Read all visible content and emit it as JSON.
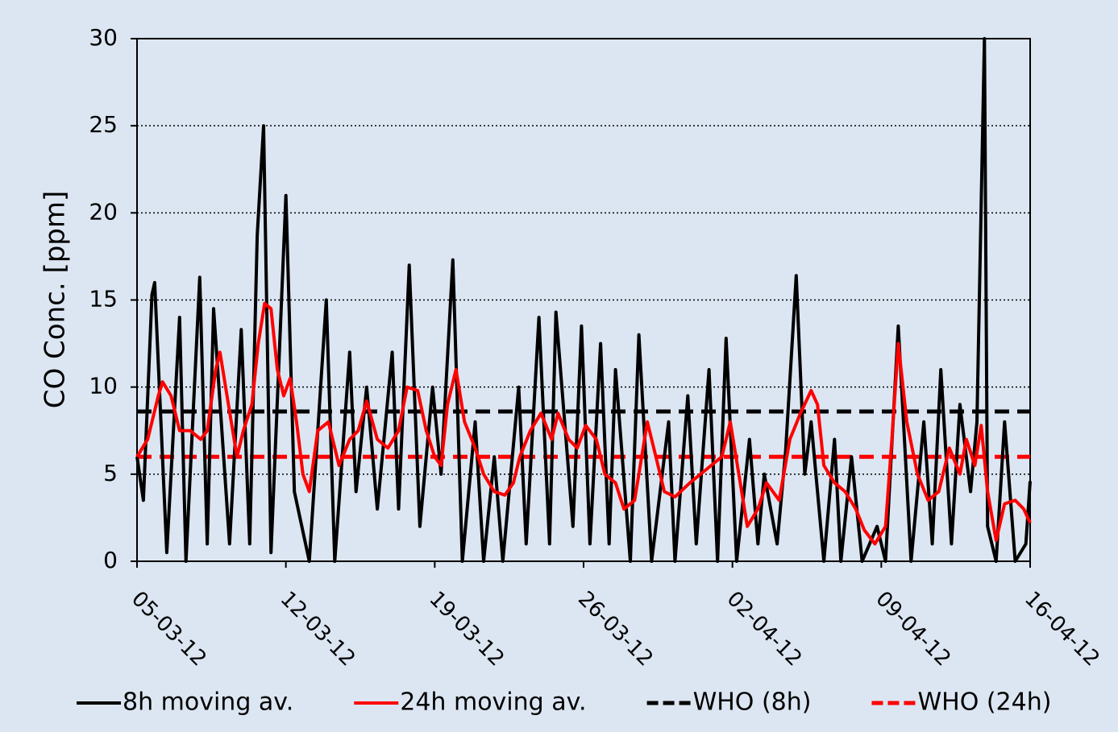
{
  "chart_data": {
    "type": "line",
    "y_label": "CO  Conc. [ppm]",
    "xlim": [
      0,
      42
    ],
    "xticks": [
      {
        "value": 0,
        "label": "05-03-12"
      },
      {
        "value": 7,
        "label": "12-03-12"
      },
      {
        "value": 14,
        "label": "19-03-12"
      },
      {
        "value": 21,
        "label": "26-03-12"
      },
      {
        "value": 28,
        "label": "02-04-12"
      },
      {
        "value": 35,
        "label": "09-04-12"
      },
      {
        "value": 42,
        "label": "16-04-12"
      }
    ],
    "ylim": [
      0,
      30
    ],
    "yticks": [
      0,
      5,
      10,
      15,
      20,
      25,
      30
    ],
    "grid": true,
    "legend": "bottom",
    "series": [
      {
        "name": "8h moving av.",
        "color": "#000000",
        "dash": false,
        "x": [
          0,
          0.3,
          0.7,
          0.83,
          1.4,
          2.0,
          2.3,
          2.95,
          3.3,
          3.6,
          4.35,
          4.9,
          5.3,
          5.65,
          5.95,
          6.3,
          7.0,
          7.4,
          8.1,
          8.9,
          9.3,
          10.0,
          10.3,
          10.8,
          11.3,
          12.0,
          12.3,
          12.8,
          13.3,
          13.9,
          14.3,
          14.85,
          15.3,
          15.9,
          16.3,
          16.8,
          17.2,
          17.95,
          18.3,
          18.9,
          19.4,
          19.7,
          20.5,
          20.9,
          21.3,
          21.8,
          22.2,
          22.5,
          23.2,
          23.6,
          24.2,
          25.0,
          25.3,
          25.9,
          26.3,
          26.9,
          27.3,
          27.7,
          28.2,
          28.8,
          29.2,
          29.5,
          30.1,
          30.5,
          31.0,
          31.4,
          31.7,
          32.3,
          32.8,
          33.1,
          33.6,
          34.1,
          34.8,
          35.2,
          35.8,
          36.4,
          37.0,
          37.4,
          37.8,
          38.3,
          38.7,
          39.2,
          39.5,
          39.85,
          40.0,
          40.4,
          40.8,
          41.3,
          41.8,
          42
        ],
        "values": [
          6,
          3.5,
          15.3,
          16,
          0.5,
          14,
          0,
          16.3,
          1,
          14.5,
          1,
          13.3,
          1,
          18.7,
          25,
          0.5,
          21,
          4,
          0,
          15,
          0,
          12,
          4,
          10,
          3,
          12,
          3,
          17,
          2,
          10,
          5,
          17.3,
          0,
          8,
          0,
          6,
          0,
          10,
          1,
          14,
          1,
          14.3,
          2,
          13.5,
          1,
          12.5,
          1,
          11,
          0,
          13,
          0,
          8,
          0,
          9.5,
          1,
          11,
          0,
          12.8,
          0,
          7,
          1,
          5,
          1,
          6.3,
          16.4,
          5,
          8,
          0,
          7,
          0,
          6,
          0,
          2,
          0,
          13.5,
          0,
          8,
          1,
          11,
          1,
          9,
          4,
          8,
          30,
          2,
          0,
          8,
          0,
          1,
          4.6
        ]
      },
      {
        "name": "24h moving av.",
        "color": "#ff0000",
        "dash": false,
        "x": [
          0,
          0.5,
          1.0,
          1.2,
          1.6,
          2.0,
          2.5,
          3.0,
          3.3,
          3.7,
          3.9,
          4.3,
          4.7,
          5.0,
          5.4,
          5.7,
          6.0,
          6.3,
          6.6,
          6.9,
          7.2,
          7.5,
          7.8,
          8.1,
          8.5,
          9.0,
          9.5,
          10.0,
          10.4,
          10.8,
          11.3,
          11.8,
          12.3,
          12.7,
          13.2,
          13.6,
          14.0,
          14.3,
          14.6,
          15.0,
          15.4,
          15.9,
          16.3,
          16.8,
          17.3,
          17.7,
          18.0,
          18.5,
          19.0,
          19.5,
          19.8,
          20.3,
          20.7,
          21.1,
          21.6,
          22.0,
          22.5,
          22.9,
          23.4,
          24.0,
          24.4,
          24.8,
          25.3,
          26.0,
          26.5,
          27.0,
          27.5,
          27.9,
          28.3,
          28.7,
          29.2,
          29.6,
          30.2,
          30.7,
          31.2,
          31.7,
          32.0,
          32.3,
          32.8,
          33.3,
          33.8,
          34.2,
          34.7,
          35.2,
          35.5,
          35.8,
          36.2,
          36.7,
          37.2,
          37.7,
          38.2,
          38.7,
          39.0,
          39.4,
          39.7,
          40.0,
          40.4,
          40.8,
          41.3,
          41.7,
          42.0
        ],
        "values": [
          6,
          7,
          9.5,
          10.3,
          9.5,
          7.5,
          7.5,
          7,
          7.5,
          11,
          12,
          9,
          6,
          7.5,
          9,
          12.5,
          14.8,
          14.5,
          11,
          9.5,
          10.5,
          8,
          5,
          4,
          7.5,
          8,
          5.5,
          7,
          7.5,
          9.2,
          7,
          6.5,
          7.5,
          10,
          9.8,
          7.5,
          6,
          5.5,
          9,
          11,
          8,
          6.5,
          5,
          4,
          3.8,
          4.5,
          6,
          7.5,
          8.5,
          7,
          8.5,
          7,
          6.5,
          7.8,
          7,
          5,
          4.5,
          3,
          3.5,
          8,
          6,
          4,
          3.7,
          4.5,
          5,
          5.5,
          6,
          8,
          5,
          2,
          3,
          4.5,
          3.5,
          7,
          8.5,
          9.8,
          9,
          5.5,
          4.5,
          4,
          3,
          1.8,
          1,
          2,
          7,
          12.5,
          8,
          5,
          3.5,
          4,
          6.5,
          5,
          7,
          5.5,
          7.8,
          4,
          1.2,
          3.3,
          3.5,
          3,
          2.2
        ]
      },
      {
        "name": "WHO (8h)",
        "color": "#000000",
        "dash": true,
        "x": [
          0,
          42
        ],
        "values": [
          8.6,
          8.6
        ]
      },
      {
        "name": "WHO (24h)",
        "color": "#ff0000",
        "dash": true,
        "x": [
          0,
          42
        ],
        "values": [
          6,
          6
        ]
      }
    ]
  }
}
